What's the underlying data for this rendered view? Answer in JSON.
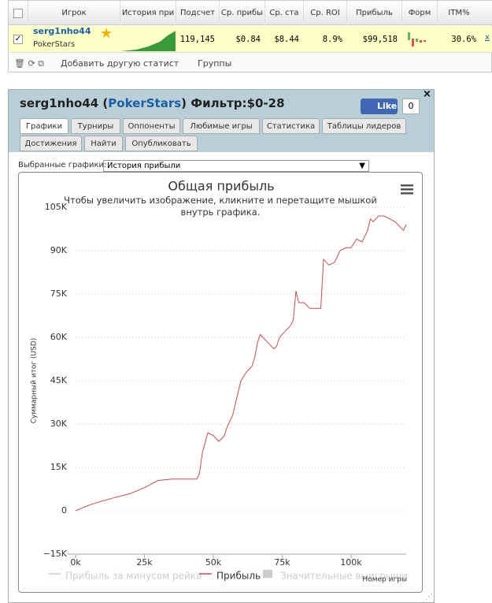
{
  "table": {
    "header": [
      "Игрок",
      "История при",
      "Подсчет",
      "Ср. прибы",
      "Ср. ста",
      "Ср. ROI",
      "Прибыль",
      "Форм",
      "ITM%"
    ],
    "row": {
      "player": "serg1nho44",
      "site": "PokerStars",
      "cells": [
        "119,145",
        "$0.84",
        "$8.44",
        "8.9%",
        "$99,518",
        "30.6%"
      ],
      "remove": "x"
    }
  },
  "toolbar": {
    "add_stat": "Добавить другую статистик",
    "groups": "Группы"
  },
  "panel": {
    "title": [
      "serg1nho44 (",
      "PokerStars",
      ") Фильтр:$0-28"
    ],
    "like": "Like",
    "like_count": "0",
    "close": "×",
    "tabs": [
      "Графики",
      "Турниры",
      "Оппоненты",
      "Любимые игры",
      "Статистика",
      "Таблицы лидеров",
      "Достижения",
      "Найти",
      "Опубликовать"
    ],
    "selector_label": "Выбранные графики:",
    "selector_value": "История прибыли"
  },
  "chart_data": {
    "type": "line",
    "title": "Общая прибыль",
    "subtitle": "Чтобы увеличить изображение, кликните и перетащите мышкой внутрь графика.",
    "y_label": "Суммарный итог (USD)",
    "x_label": "Номер игры",
    "legend": [
      "Прибыль за минусом рейка",
      "Прибыль",
      "Значительные выигрыши"
    ],
    "x": [
      0,
      5000,
      10000,
      20000,
      25000,
      30000,
      35000,
      40000,
      44000,
      45000,
      46000,
      48000,
      50000,
      52000,
      54000,
      55000,
      57000,
      60000,
      62000,
      64000,
      65000,
      66000,
      67000,
      68000,
      70000,
      72000,
      73000,
      74000,
      76000,
      78000,
      79000,
      80000,
      81000,
      83000,
      85000,
      87000,
      89000,
      90000,
      92000,
      94000,
      96000,
      98000,
      100000,
      102000,
      104000,
      106000,
      107000,
      108000,
      110000,
      112000,
      114000,
      116000,
      118000,
      119000,
      120000
    ],
    "series": [
      {
        "name": "Прибыль",
        "color": "#c0504d",
        "values": [
          0,
          2000,
          3500,
          6000,
          8000,
          10500,
          11000,
          11000,
          11000,
          13000,
          20000,
          27000,
          26000,
          24000,
          26000,
          29000,
          33000,
          45000,
          48000,
          50000,
          53000,
          58000,
          61000,
          60000,
          58000,
          56000,
          57000,
          60000,
          62000,
          64000,
          66000,
          76000,
          72000,
          72000,
          70000,
          70000,
          70000,
          87000,
          85000,
          86000,
          90000,
          91000,
          91000,
          94000,
          93000,
          97000,
          101000,
          100000,
          102000,
          102000,
          101000,
          100000,
          98000,
          97000,
          99000
        ]
      }
    ],
    "xlim": [
      0,
      120000
    ],
    "xticks": [
      {
        "value": 0,
        "label": "0k"
      },
      {
        "value": 25000,
        "label": "25k"
      },
      {
        "value": 50000,
        "label": "50k"
      },
      {
        "value": 75000,
        "label": "75k"
      },
      {
        "value": 100000,
        "label": "100k"
      }
    ],
    "ylim": [
      -15000,
      105000
    ],
    "yticks": [
      {
        "value": -15000,
        "label": "−15K"
      },
      {
        "value": 0,
        "label": "0"
      },
      {
        "value": 15000,
        "label": "15K"
      },
      {
        "value": 30000,
        "label": "30K"
      },
      {
        "value": 45000,
        "label": "45K"
      },
      {
        "value": 60000,
        "label": "60K"
      },
      {
        "value": 75000,
        "label": "75K"
      },
      {
        "value": 90000,
        "label": "90K"
      },
      {
        "value": 105000,
        "label": "105K"
      }
    ],
    "grid": true
  }
}
